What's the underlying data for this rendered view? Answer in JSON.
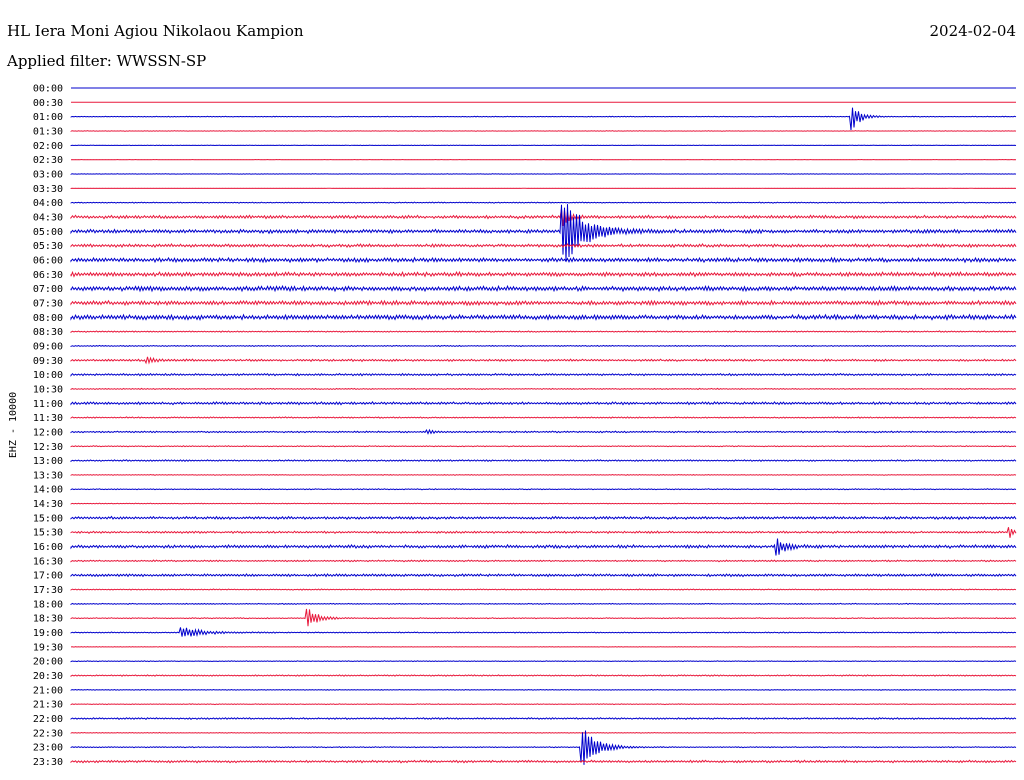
{
  "header": {
    "station": "HL Iera Moni Agiou Nikolaou Kampion",
    "date": "2024-02-04",
    "filter": "Applied filter: WWSSN-SP"
  },
  "chart_data": {
    "type": "line",
    "ylabel": "EHZ - 10000",
    "rows": [
      "00:00",
      "00:30",
      "01:00",
      "01:30",
      "02:00",
      "02:30",
      "03:00",
      "03:30",
      "04:00",
      "04:30",
      "05:00",
      "05:30",
      "06:00",
      "06:30",
      "07:00",
      "07:30",
      "08:00",
      "08:30",
      "09:00",
      "09:30",
      "10:00",
      "10:30",
      "11:00",
      "11:30",
      "12:00",
      "12:30",
      "13:00",
      "13:30",
      "14:00",
      "14:30",
      "15:00",
      "15:30",
      "16:00",
      "16:30",
      "17:00",
      "17:30",
      "18:00",
      "18:30",
      "19:00",
      "19:30",
      "20:00",
      "20:30",
      "21:00",
      "21:30",
      "22:00",
      "22:30",
      "23:00",
      "23:30"
    ],
    "colors": [
      "#0000cc",
      "#e8193c"
    ],
    "minutes_per_row": 30,
    "noise_level": [
      0,
      0,
      0.3,
      0.2,
      0.2,
      0.1,
      0.2,
      0.1,
      0.4,
      1.2,
      1.4,
      1.2,
      1.6,
      1.6,
      1.8,
      1.6,
      1.8,
      0.5,
      0.4,
      0.8,
      0.8,
      0.4,
      1,
      0.5,
      0.6,
      0.4,
      0.6,
      0.3,
      0.4,
      0.3,
      1,
      0.8,
      1.2,
      0.6,
      1,
      0.4,
      0.4,
      0.4,
      0.4,
      0.2,
      0.3,
      0.5,
      0.3,
      0.3,
      0.6,
      0.3,
      0.4,
      0.9
    ],
    "events": [
      {
        "row": 2,
        "minute": 24.8,
        "amplitude": 14,
        "duration_min": 0.5
      },
      {
        "row": 10,
        "minute": 15.6,
        "amplitude": 42,
        "duration_min": 1.2
      },
      {
        "row": 9,
        "minute": 15.6,
        "amplitude": 10,
        "duration_min": 0.4
      },
      {
        "row": 32,
        "minute": 22.4,
        "amplitude": 9,
        "duration_min": 0.6
      },
      {
        "row": 37,
        "minute": 7.5,
        "amplitude": 12,
        "duration_min": 0.6
      },
      {
        "row": 38,
        "minute": 3.5,
        "amplitude": 6,
        "duration_min": 1.2
      },
      {
        "row": 46,
        "minute": 16.2,
        "amplitude": 22,
        "duration_min": 0.9
      },
      {
        "row": 31,
        "minute": 29.8,
        "amplitude": 6,
        "duration_min": 0.2
      },
      {
        "row": 19,
        "minute": 2.4,
        "amplitude": 4,
        "duration_min": 0.5
      },
      {
        "row": 24,
        "minute": 11.3,
        "amplitude": 3,
        "duration_min": 0.4
      }
    ]
  }
}
